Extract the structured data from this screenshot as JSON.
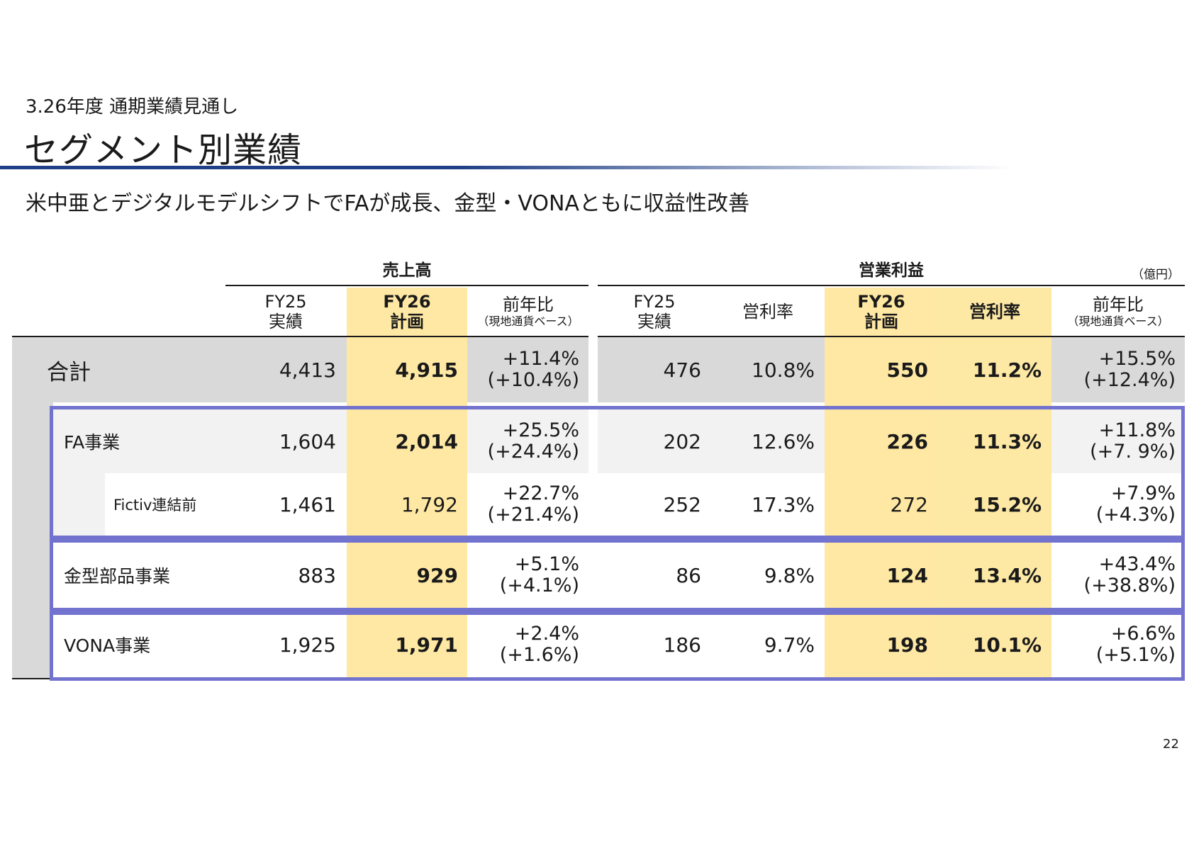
{
  "header": {
    "subtitle": "3.26年度 通期業績見通し",
    "title": "セグメント別業績",
    "lead": "米中亜とデジタルモデルシフトでFAが成長、金型・VONAともに収益性改善"
  },
  "table": {
    "group_sales": "売上高",
    "group_profit": "営業利益",
    "unit": "（億円）",
    "columns": {
      "fy25_a": "FY25",
      "fy25_b": "実績",
      "fy26_a": "FY26",
      "fy26_b": "計画",
      "yoy_a": "前年比",
      "yoy_b": "（現地通貨ベース）",
      "margin": "営利率"
    },
    "rows": [
      {
        "label": "合計",
        "s25": "4,413",
        "s26": "4,915",
        "sy1": "+11.4%",
        "sy2": "(+10.4%)",
        "p25": "476",
        "m25": "10.8%",
        "p26": "550",
        "m26": "11.2%",
        "py1": "+15.5%",
        "py2": "(+12.4%)"
      },
      {
        "label": "FA事業",
        "s25": "1,604",
        "s26": "2,014",
        "sy1": "+25.5%",
        "sy2": "(+24.4%)",
        "p25": "202",
        "m25": "12.6%",
        "p26": "226",
        "m26": "11.3%",
        "py1": "+11.8%",
        "py2": "(+7. 9%)"
      },
      {
        "label": "Fictiv連結前",
        "s25": "1,461",
        "s26": "1,792",
        "sy1": "+22.7%",
        "sy2": "(+21.4%)",
        "p25": "252",
        "m25": "17.3%",
        "p26": "272",
        "m26": "15.2%",
        "py1": "+7.9%",
        "py2": "(+4.3%)"
      },
      {
        "label": "金型部品事業",
        "s25": "883",
        "s26": "929",
        "sy1": "+5.1%",
        "sy2": "(+4.1%)",
        "p25": "86",
        "m25": "9.8%",
        "p26": "124",
        "m26": "13.4%",
        "py1": "+43.4%",
        "py2": "(+38.8%)"
      },
      {
        "label": "VONA事業",
        "s25": "1,925",
        "s26": "1,971",
        "sy1": "+2.4%",
        "sy2": "(+1.6%)",
        "p25": "186",
        "m25": "9.7%",
        "p26": "198",
        "m26": "10.1%",
        "py1": "+6.6%",
        "py2": "(+5.1%)"
      }
    ]
  },
  "page_number": "22"
}
